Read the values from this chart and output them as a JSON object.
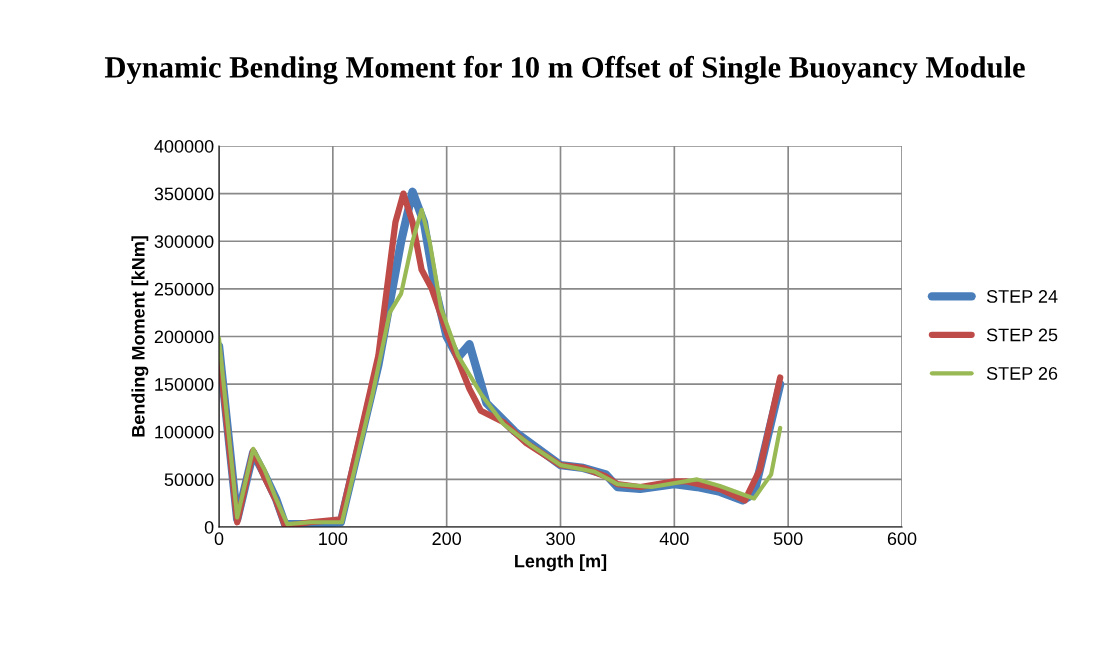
{
  "chart_data": {
    "type": "line",
    "title": "Dynamic Bending Moment for 10 m Offset of Single Buoyancy Module",
    "xlabel": "Length [m]",
    "ylabel": "Bending Moment [kNm]",
    "xlim": [
      0,
      600
    ],
    "xticks": [
      0,
      100,
      200,
      300,
      400,
      500,
      600
    ],
    "ylim": [
      0,
      400000
    ],
    "yticks": [
      0,
      50000,
      100000,
      150000,
      200000,
      250000,
      300000,
      350000,
      400000
    ],
    "grid": true,
    "legend": "right",
    "marker": "none",
    "line_style": "solid",
    "series": [
      {
        "name": "STEP 24",
        "color": "#4a7ebb",
        "x": [
          0,
          16,
          30,
          40,
          50,
          58,
          80,
          107,
          140,
          160,
          170,
          180,
          190,
          200,
          210,
          220,
          235,
          260,
          300,
          320,
          340,
          350,
          370,
          400,
          420,
          440,
          460,
          470,
          493
        ],
        "values": [
          190000,
          8000,
          78000,
          55000,
          30000,
          3000,
          3000,
          5000,
          170000,
          300000,
          352000,
          320000,
          250000,
          200000,
          178000,
          192000,
          130000,
          100000,
          65000,
          62000,
          55000,
          42000,
          40000,
          45000,
          42000,
          37000,
          28000,
          35000,
          150000
        ]
      },
      {
        "name": "STEP 25",
        "color": "#be4b48",
        "x": [
          0,
          16,
          30,
          40,
          50,
          58,
          80,
          107,
          140,
          155,
          162,
          170,
          178,
          187,
          200,
          220,
          230,
          250,
          270,
          300,
          320,
          340,
          350,
          370,
          400,
          410,
          440,
          462,
          475,
          493
        ],
        "values": [
          185000,
          5000,
          80000,
          52000,
          28000,
          1000,
          5000,
          8000,
          180000,
          320000,
          350000,
          320000,
          270000,
          250000,
          205000,
          145000,
          122000,
          110000,
          88000,
          65000,
          62000,
          53000,
          45000,
          42000,
          48000,
          48000,
          40000,
          28000,
          60000,
          157000
        ]
      },
      {
        "name": "STEP 26",
        "color": "#98b954",
        "x": [
          0,
          16,
          30,
          40,
          50,
          60,
          80,
          108,
          135,
          150,
          160,
          170,
          178,
          185,
          195,
          210,
          230,
          250,
          275,
          300,
          330,
          350,
          380,
          420,
          440,
          470,
          485,
          493
        ],
        "values": [
          198000,
          10000,
          82000,
          60000,
          30000,
          3000,
          5000,
          5000,
          140000,
          225000,
          245000,
          300000,
          333000,
          300000,
          230000,
          180000,
          140000,
          108000,
          85000,
          65000,
          58000,
          45000,
          42000,
          50000,
          43000,
          30000,
          55000,
          104000
        ]
      }
    ]
  }
}
